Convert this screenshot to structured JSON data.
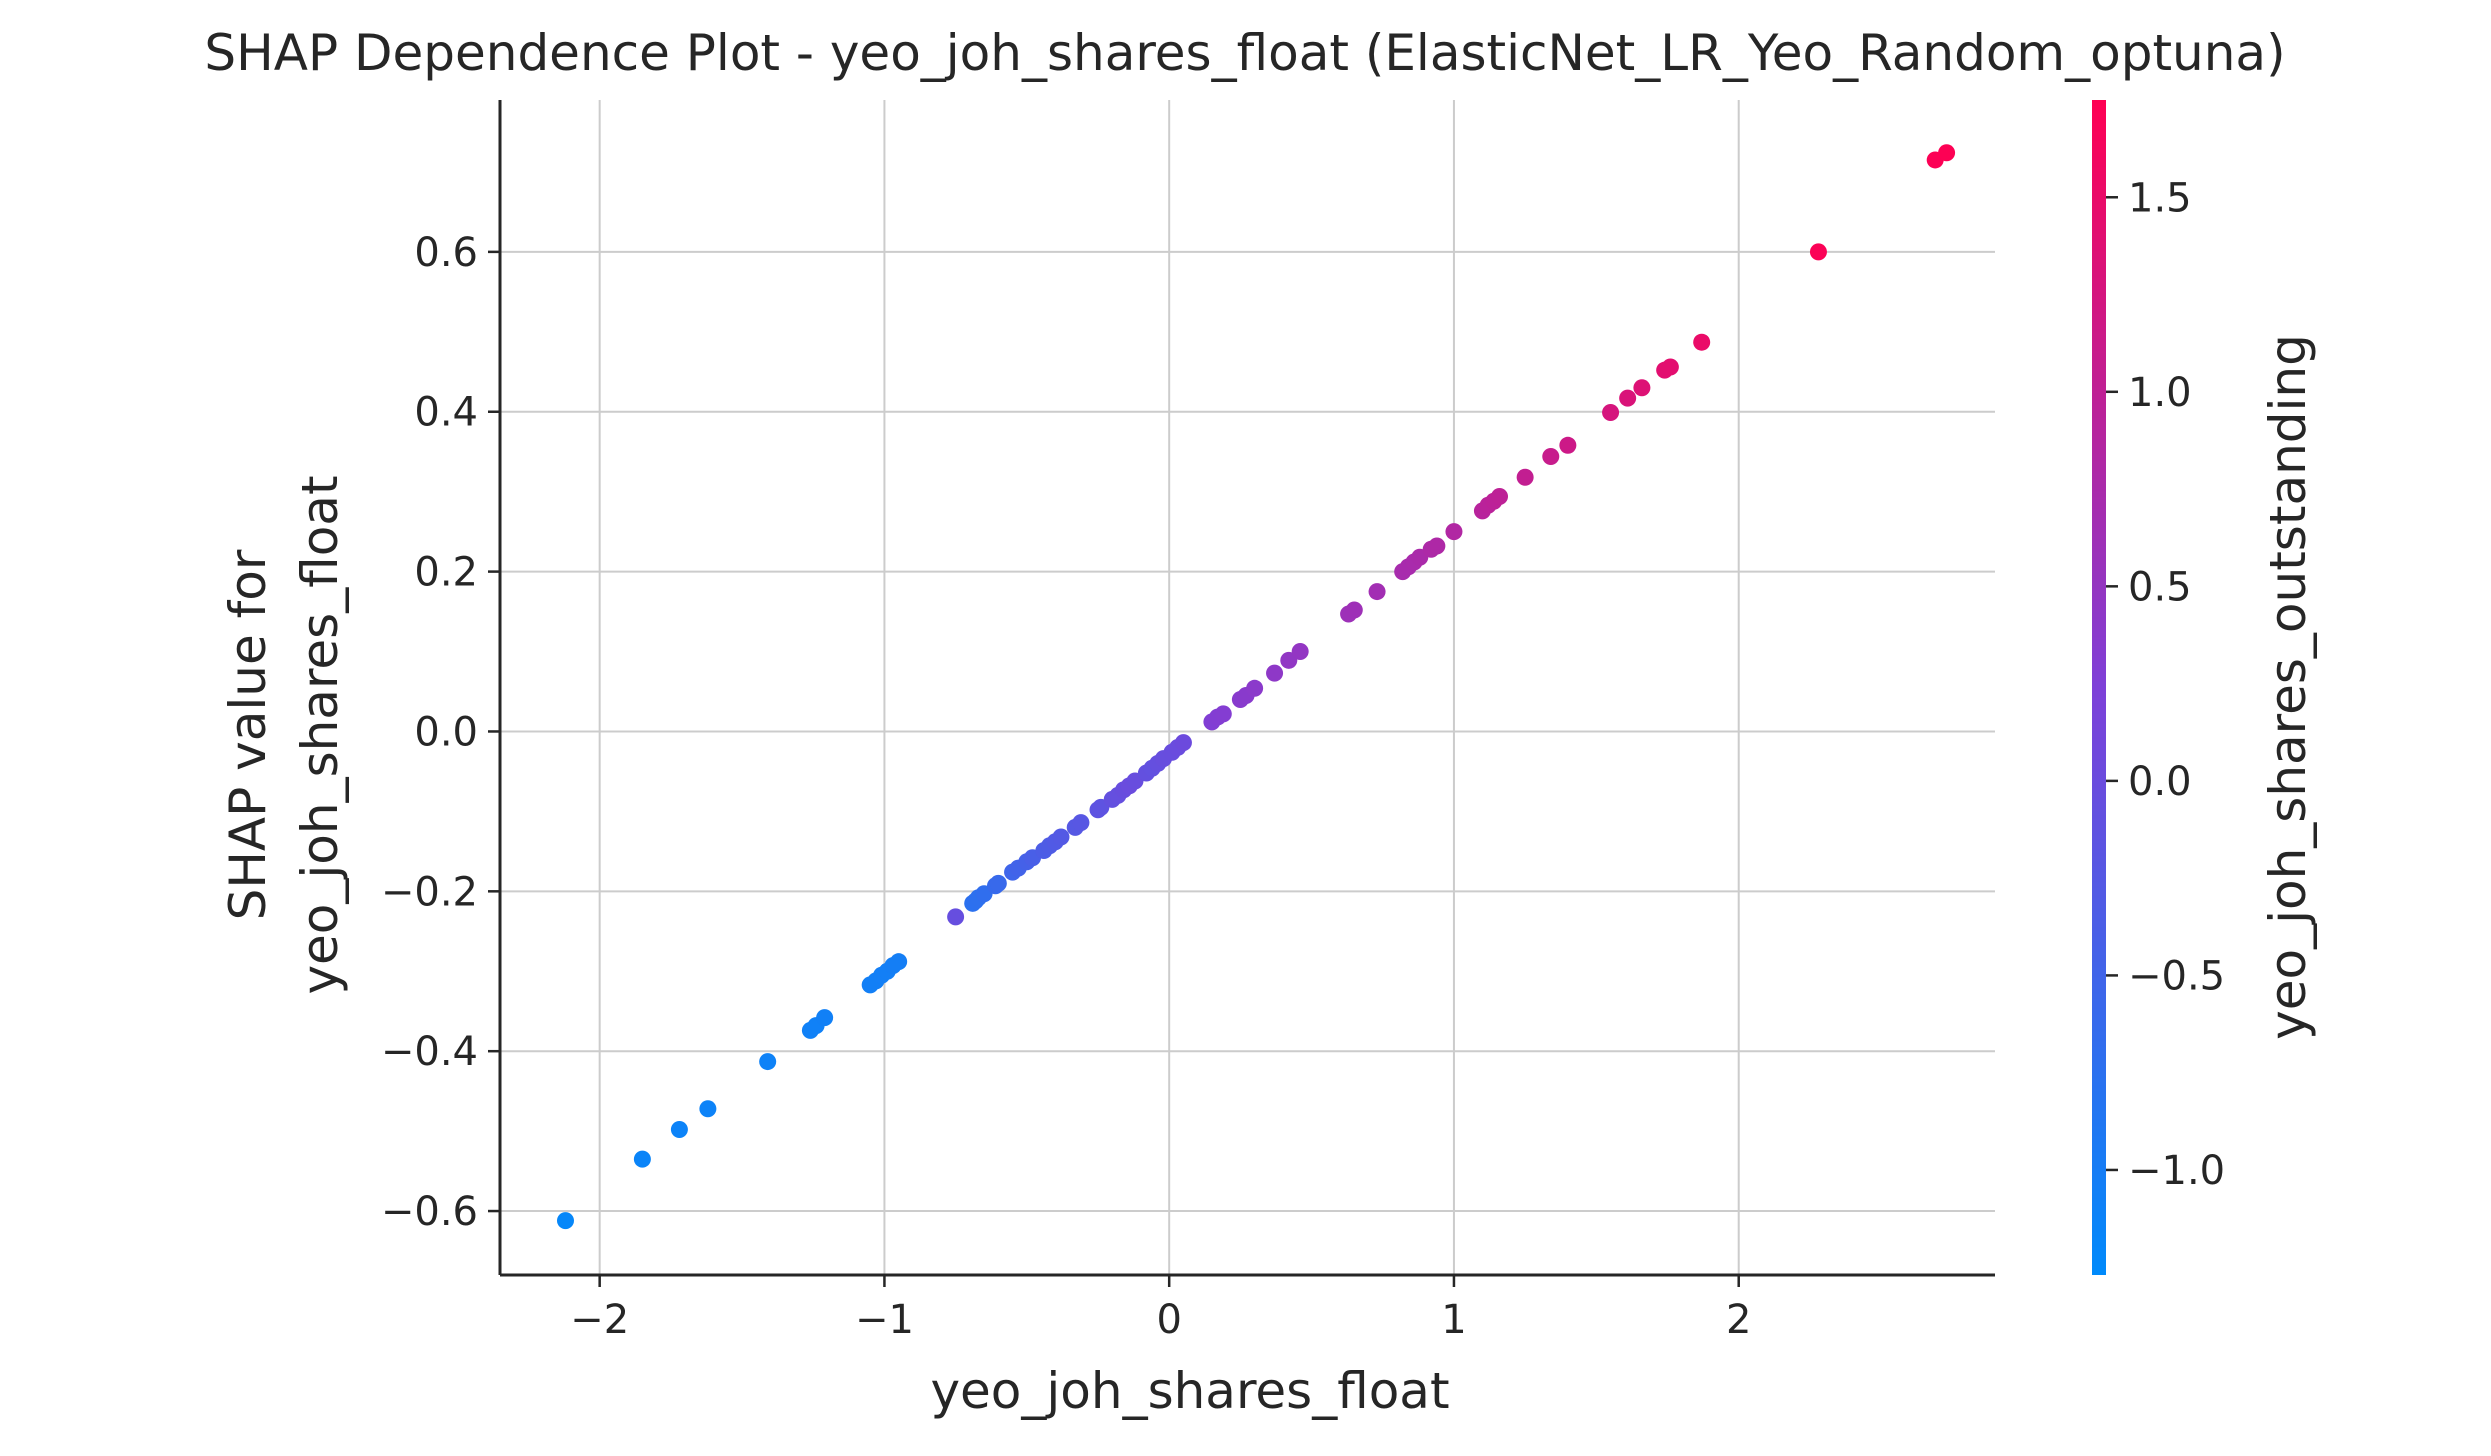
{
  "chart_data": {
    "type": "scatter",
    "title": "SHAP Dependence Plot - yeo_joh_shares_float (ElasticNet_LR_Yeo_Random_optuna)",
    "xlabel": "yeo_joh_shares_float",
    "ylabel_line1": "SHAP value for",
    "ylabel_line2": "yeo_joh_shares_float",
    "xlim": [
      -2.35,
      2.9
    ],
    "ylim": [
      -0.68,
      0.79
    ],
    "x_ticks": [
      -2,
      -1,
      0,
      1,
      2
    ],
    "x_tick_labels": [
      "−2",
      "−1",
      "0",
      "1",
      "2"
    ],
    "y_ticks": [
      -0.6,
      -0.4,
      -0.2,
      0.0,
      0.2,
      0.4,
      0.6
    ],
    "y_tick_labels": [
      "−0.6",
      "−0.4",
      "−0.2",
      "0.0",
      "0.2",
      "0.4",
      "0.6"
    ],
    "grid": true,
    "colorbar": {
      "label": "yeo_joh_shares_outstanding",
      "range": [
        -1.27,
        1.75
      ],
      "ticks": [
        -1.0,
        -0.5,
        0.0,
        0.5,
        1.0,
        1.5
      ],
      "tick_labels": [
        "−1.0",
        "−0.5",
        "0.0",
        "0.5",
        "1.0",
        "1.5"
      ],
      "color_low": "#008afb",
      "color_mid": "#7e40d8",
      "color_high": "#ff0052"
    },
    "points": [
      {
        "x": -2.12,
        "y": -0.612,
        "c": -1.2
      },
      {
        "x": -1.85,
        "y": -0.535,
        "c": -1.15
      },
      {
        "x": -1.72,
        "y": -0.498,
        "c": -1.13
      },
      {
        "x": -1.62,
        "y": -0.472,
        "c": -1.12
      },
      {
        "x": -1.41,
        "y": -0.413,
        "c": -1.1
      },
      {
        "x": -1.26,
        "y": -0.374,
        "c": -1.08
      },
      {
        "x": -1.24,
        "y": -0.368,
        "c": -1.08
      },
      {
        "x": -1.21,
        "y": -0.358,
        "c": -1.07
      },
      {
        "x": -1.05,
        "y": -0.317,
        "c": -1.05
      },
      {
        "x": -1.03,
        "y": -0.312,
        "c": -1.05
      },
      {
        "x": -1.01,
        "y": -0.305,
        "c": -1.04
      },
      {
        "x": -0.99,
        "y": -0.3,
        "c": -1.04
      },
      {
        "x": -0.97,
        "y": -0.293,
        "c": -1.03
      },
      {
        "x": -0.95,
        "y": -0.288,
        "c": -1.03
      },
      {
        "x": -0.75,
        "y": -0.232,
        "c": -0.05
      },
      {
        "x": -0.69,
        "y": -0.215,
        "c": -0.75
      },
      {
        "x": -0.68,
        "y": -0.212,
        "c": -0.74
      },
      {
        "x": -0.67,
        "y": -0.208,
        "c": -0.73
      },
      {
        "x": -0.65,
        "y": -0.203,
        "c": -0.7
      },
      {
        "x": -0.61,
        "y": -0.193,
        "c": -0.62
      },
      {
        "x": -0.6,
        "y": -0.19,
        "c": -0.6
      },
      {
        "x": -0.55,
        "y": -0.176,
        "c": -0.52
      },
      {
        "x": -0.53,
        "y": -0.171,
        "c": -0.48
      },
      {
        "x": -0.5,
        "y": -0.163,
        "c": -0.44
      },
      {
        "x": -0.48,
        "y": -0.158,
        "c": -0.4
      },
      {
        "x": -0.44,
        "y": -0.149,
        "c": -0.36
      },
      {
        "x": -0.42,
        "y": -0.143,
        "c": -0.33
      },
      {
        "x": -0.4,
        "y": -0.138,
        "c": -0.3
      },
      {
        "x": -0.38,
        "y": -0.132,
        "c": -0.27
      },
      {
        "x": -0.33,
        "y": -0.12,
        "c": -0.24
      },
      {
        "x": -0.31,
        "y": -0.114,
        "c": -0.22
      },
      {
        "x": -0.25,
        "y": -0.098,
        "c": -0.15
      },
      {
        "x": -0.24,
        "y": -0.095,
        "c": -0.14
      },
      {
        "x": -0.2,
        "y": -0.085,
        "c": -0.08
      },
      {
        "x": -0.18,
        "y": -0.08,
        "c": -0.06
      },
      {
        "x": -0.16,
        "y": -0.073,
        "c": -0.03
      },
      {
        "x": -0.14,
        "y": -0.068,
        "c": 0.0
      },
      {
        "x": -0.12,
        "y": -0.062,
        "c": -0.02
      },
      {
        "x": -0.08,
        "y": -0.052,
        "c": -0.08
      },
      {
        "x": -0.06,
        "y": -0.046,
        "c": -0.1
      },
      {
        "x": -0.04,
        "y": -0.04,
        "c": -0.06
      },
      {
        "x": -0.02,
        "y": -0.034,
        "c": -0.04
      },
      {
        "x": 0.01,
        "y": -0.026,
        "c": -0.02
      },
      {
        "x": 0.03,
        "y": -0.02,
        "c": 0.0
      },
      {
        "x": 0.05,
        "y": -0.014,
        "c": 0.03
      },
      {
        "x": 0.15,
        "y": 0.012,
        "c": 0.28
      },
      {
        "x": 0.17,
        "y": 0.018,
        "c": 0.3
      },
      {
        "x": 0.19,
        "y": 0.022,
        "c": 0.31
      },
      {
        "x": 0.25,
        "y": 0.04,
        "c": 0.36
      },
      {
        "x": 0.27,
        "y": 0.045,
        "c": 0.37
      },
      {
        "x": 0.3,
        "y": 0.054,
        "c": 0.39
      },
      {
        "x": 0.37,
        "y": 0.073,
        "c": 0.43
      },
      {
        "x": 0.42,
        "y": 0.089,
        "c": 0.46
      },
      {
        "x": 0.46,
        "y": 0.1,
        "c": 0.48
      },
      {
        "x": 0.63,
        "y": 0.147,
        "c": 0.6
      },
      {
        "x": 0.65,
        "y": 0.152,
        "c": 0.61
      },
      {
        "x": 0.73,
        "y": 0.175,
        "c": 0.66
      },
      {
        "x": 0.82,
        "y": 0.2,
        "c": 0.72
      },
      {
        "x": 0.84,
        "y": 0.206,
        "c": 0.73
      },
      {
        "x": 0.86,
        "y": 0.212,
        "c": 0.74
      },
      {
        "x": 0.88,
        "y": 0.218,
        "c": 0.76
      },
      {
        "x": 0.92,
        "y": 0.228,
        "c": 0.79
      },
      {
        "x": 0.94,
        "y": 0.232,
        "c": 0.8
      },
      {
        "x": 1.0,
        "y": 0.25,
        "c": 0.84
      },
      {
        "x": 1.1,
        "y": 0.276,
        "c": 0.92
      },
      {
        "x": 1.12,
        "y": 0.283,
        "c": 0.94
      },
      {
        "x": 1.14,
        "y": 0.288,
        "c": 0.96
      },
      {
        "x": 1.16,
        "y": 0.294,
        "c": 0.98
      },
      {
        "x": 1.25,
        "y": 0.318,
        "c": 1.04
      },
      {
        "x": 1.34,
        "y": 0.344,
        "c": 1.1
      },
      {
        "x": 1.4,
        "y": 0.358,
        "c": 1.15
      },
      {
        "x": 1.55,
        "y": 0.399,
        "c": 1.26
      },
      {
        "x": 1.61,
        "y": 0.417,
        "c": 1.31
      },
      {
        "x": 1.66,
        "y": 0.43,
        "c": 1.35
      },
      {
        "x": 1.74,
        "y": 0.452,
        "c": 1.41
      },
      {
        "x": 1.76,
        "y": 0.456,
        "c": 1.42
      },
      {
        "x": 1.87,
        "y": 0.487,
        "c": 1.5
      },
      {
        "x": 2.28,
        "y": 0.6,
        "c": 1.7
      },
      {
        "x": 2.69,
        "y": 0.715,
        "c": 1.72
      },
      {
        "x": 2.73,
        "y": 0.724,
        "c": 1.73
      }
    ]
  }
}
